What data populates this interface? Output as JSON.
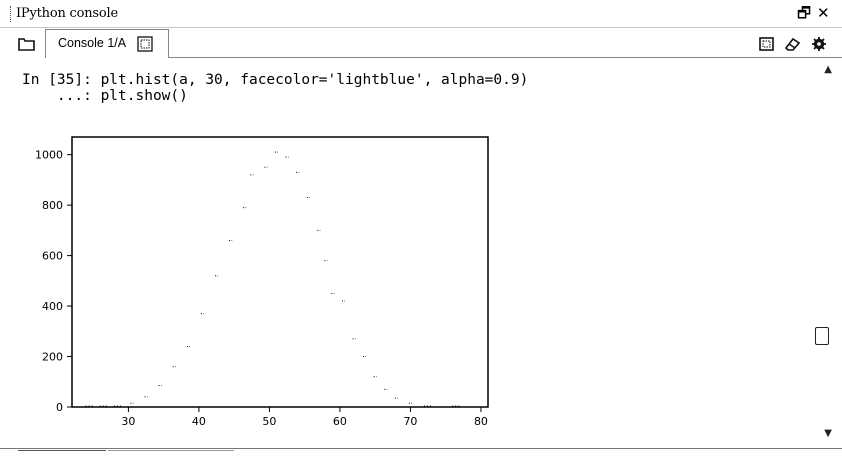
{
  "window": {
    "title": "IPython console",
    "restore_glyph": "🗗",
    "close_glyph": "✕"
  },
  "toolbar": {
    "tab_label": "Console 1/A",
    "icons": [
      "folder-icon",
      "console-options-icon",
      "eraser-icon",
      "gear-icon"
    ]
  },
  "console": {
    "input_prompt": "In [35]: plt.hist(a, 30, facecolor='lightblue', alpha=0.9)",
    "continuation": "    ...: plt.show()"
  },
  "colors": {
    "marks": "#000000",
    "axes": "#000000",
    "tab_border": "#888888"
  },
  "chart_data": {
    "type": "bar",
    "title": "",
    "xlabel": "",
    "ylabel": "",
    "xlim": [
      22,
      81
    ],
    "ylim": [
      0,
      1070
    ],
    "xticks": [
      30,
      40,
      50,
      60,
      70,
      80
    ],
    "yticks": [
      0,
      200,
      400,
      600,
      800,
      1000
    ],
    "grid": false,
    "bins": [
      {
        "x": 24.5,
        "value": 0
      },
      {
        "x": 26.5,
        "value": 0
      },
      {
        "x": 28.5,
        "value": 2
      },
      {
        "x": 30.5,
        "value": 15
      },
      {
        "x": 32.5,
        "value": 40
      },
      {
        "x": 34.5,
        "value": 85
      },
      {
        "x": 36.5,
        "value": 160
      },
      {
        "x": 38.5,
        "value": 240
      },
      {
        "x": 40.5,
        "value": 370
      },
      {
        "x": 42.5,
        "value": 520
      },
      {
        "x": 44.5,
        "value": 660
      },
      {
        "x": 46.5,
        "value": 790
      },
      {
        "x": 47.5,
        "value": 920
      },
      {
        "x": 49.5,
        "value": 950
      },
      {
        "x": 51.0,
        "value": 1010
      },
      {
        "x": 52.5,
        "value": 990
      },
      {
        "x": 54.0,
        "value": 930
      },
      {
        "x": 55.5,
        "value": 830
      },
      {
        "x": 57.0,
        "value": 700
      },
      {
        "x": 58.0,
        "value": 580
      },
      {
        "x": 59.0,
        "value": 450
      },
      {
        "x": 60.5,
        "value": 420
      },
      {
        "x": 62.0,
        "value": 270
      },
      {
        "x": 63.5,
        "value": 200
      },
      {
        "x": 65.0,
        "value": 120
      },
      {
        "x": 66.5,
        "value": 70
      },
      {
        "x": 68.0,
        "value": 35
      },
      {
        "x": 70.0,
        "value": 15
      },
      {
        "x": 72.5,
        "value": 5
      },
      {
        "x": 76.5,
        "value": 2
      }
    ]
  }
}
